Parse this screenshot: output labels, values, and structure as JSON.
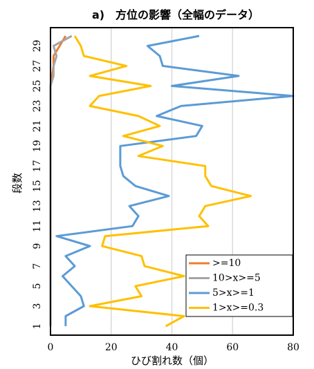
{
  "chart_data": {
    "type": "line",
    "title": "a)　方位の影響（全幅のデータ）",
    "xlabel": "ひび割れ数（個）",
    "ylabel": "段数",
    "xlim": [
      0,
      80
    ],
    "ylim": [
      1,
      30
    ],
    "x_ticks": [
      0,
      20,
      40,
      60,
      80
    ],
    "y_ticks": [
      1,
      3,
      5,
      7,
      9,
      11,
      13,
      15,
      17,
      19,
      21,
      23,
      25,
      27,
      29
    ],
    "grid": "vertical",
    "legend_position": "bottom-right",
    "series": [
      {
        "name": ">=10",
        "color": "#ED7D31",
        "points": [
          [
            0,
            1
          ],
          [
            0,
            2
          ],
          [
            0,
            3
          ],
          [
            0,
            4
          ],
          [
            0,
            5
          ],
          [
            0,
            6
          ],
          [
            0,
            7
          ],
          [
            0,
            8
          ],
          [
            0,
            9
          ],
          [
            0,
            10
          ],
          [
            0,
            11
          ],
          [
            0,
            12
          ],
          [
            0,
            13
          ],
          [
            0,
            14
          ],
          [
            0,
            15
          ],
          [
            0,
            16
          ],
          [
            0,
            17
          ],
          [
            0,
            18
          ],
          [
            0,
            19
          ],
          [
            0,
            20
          ],
          [
            0,
            21
          ],
          [
            0,
            22
          ],
          [
            0,
            23
          ],
          [
            0,
            24
          ],
          [
            0,
            25
          ],
          [
            0.5,
            26
          ],
          [
            1,
            27
          ],
          [
            1,
            28
          ],
          [
            3,
            29
          ],
          [
            5,
            30
          ]
        ]
      },
      {
        "name": "10>x>=5",
        "color": "#A5A5A5",
        "points": [
          [
            0,
            1
          ],
          [
            0,
            2
          ],
          [
            0,
            3
          ],
          [
            0,
            4
          ],
          [
            0,
            5
          ],
          [
            0,
            6
          ],
          [
            0,
            7
          ],
          [
            0,
            8
          ],
          [
            0,
            9
          ],
          [
            0,
            10
          ],
          [
            0,
            11
          ],
          [
            0,
            12
          ],
          [
            0,
            13
          ],
          [
            0,
            14
          ],
          [
            0,
            15
          ],
          [
            0,
            16
          ],
          [
            0,
            17
          ],
          [
            0,
            18
          ],
          [
            0,
            19
          ],
          [
            0,
            20
          ],
          [
            0,
            21
          ],
          [
            0,
            22
          ],
          [
            0,
            23
          ],
          [
            0,
            24
          ],
          [
            0,
            25
          ],
          [
            1,
            26
          ],
          [
            1,
            27
          ],
          [
            2,
            28
          ],
          [
            1,
            29
          ],
          [
            7,
            30
          ]
        ]
      },
      {
        "name": "5>x>=1",
        "color": "#5B9BD5",
        "points": [
          [
            5,
            1
          ],
          [
            5,
            2
          ],
          [
            11,
            3
          ],
          [
            10,
            4
          ],
          [
            7,
            5
          ],
          [
            4,
            6
          ],
          [
            8,
            7
          ],
          [
            5,
            8
          ],
          [
            13,
            9
          ],
          [
            2,
            10
          ],
          [
            27,
            11
          ],
          [
            29,
            12
          ],
          [
            26,
            13
          ],
          [
            39,
            14
          ],
          [
            28,
            15
          ],
          [
            24,
            16
          ],
          [
            23,
            17
          ],
          [
            23,
            18
          ],
          [
            23,
            19
          ],
          [
            48,
            20
          ],
          [
            50,
            21
          ],
          [
            35,
            22
          ],
          [
            43,
            23
          ],
          [
            80,
            24
          ],
          [
            40,
            25
          ],
          [
            62,
            26
          ],
          [
            37,
            27
          ],
          [
            36,
            28
          ],
          [
            32,
            29
          ],
          [
            49,
            30
          ]
        ]
      },
      {
        "name": "1>x>=0.3",
        "color": "#FFC000",
        "points": [
          [
            38,
            1
          ],
          [
            44,
            2
          ],
          [
            13,
            3
          ],
          [
            30,
            4
          ],
          [
            28,
            5
          ],
          [
            44,
            6
          ],
          [
            31,
            7
          ],
          [
            30,
            8
          ],
          [
            17,
            9
          ],
          [
            18,
            10
          ],
          [
            52,
            11
          ],
          [
            49,
            12
          ],
          [
            51,
            13
          ],
          [
            66,
            14
          ],
          [
            53,
            15
          ],
          [
            51,
            16
          ],
          [
            51,
            17
          ],
          [
            29,
            18
          ],
          [
            37,
            19
          ],
          [
            24,
            20
          ],
          [
            36,
            21
          ],
          [
            29,
            22
          ],
          [
            13,
            23
          ],
          [
            16,
            24
          ],
          [
            33,
            25
          ],
          [
            13,
            26
          ],
          [
            25,
            27
          ],
          [
            11,
            28
          ],
          [
            10,
            29
          ],
          [
            8,
            30
          ]
        ]
      }
    ]
  }
}
